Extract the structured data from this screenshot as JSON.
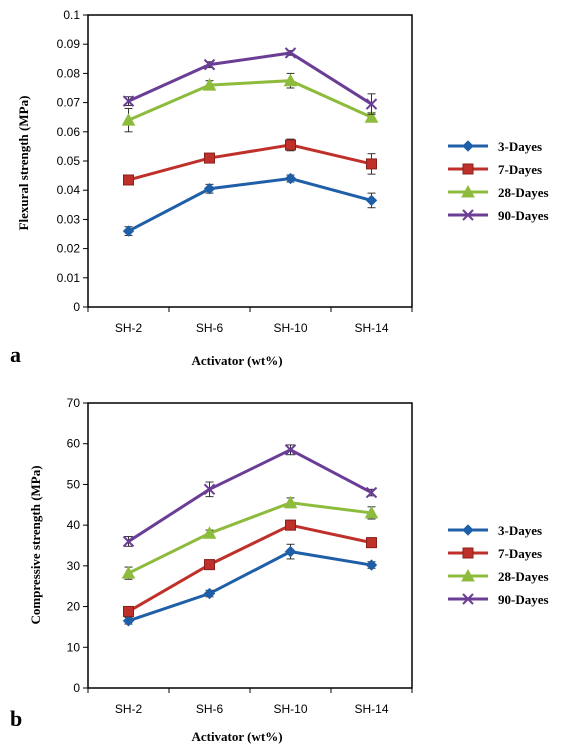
{
  "chart_data": [
    {
      "type": "line",
      "panel": "a",
      "categories": [
        "SH-2",
        "SH-6",
        "SH-10",
        "SH-14"
      ],
      "xlabel": "Activator (wt%)",
      "ylabel": "Flexural strength (MPa)",
      "ylim": [
        0,
        0.1
      ],
      "yticks": [
        "0",
        "0.01",
        "0.02",
        "0.03",
        "0.04",
        "0.05",
        "0.06",
        "0.07",
        "0.08",
        "0.09",
        "0.1"
      ],
      "grid": false,
      "legend": "right",
      "series": [
        {
          "name": "3-Dayes",
          "values": [
            0.026,
            0.0405,
            0.044,
            0.0365
          ],
          "errors": [
            0.0015,
            0.0015,
            0.0012,
            0.0025
          ],
          "color": "#1f5fa8",
          "marker": "diamond"
        },
        {
          "name": "7-Dayes",
          "values": [
            0.0435,
            0.051,
            0.0555,
            0.049
          ],
          "errors": [
            0.0015,
            0.0015,
            0.002,
            0.0035
          ],
          "color": "#c0302a",
          "marker": "square"
        },
        {
          "name": "28-Dayes",
          "values": [
            0.064,
            0.076,
            0.0775,
            0.065
          ],
          "errors": [
            0.004,
            0.0015,
            0.0025,
            0.0015
          ],
          "color": "#8dbb3c",
          "marker": "triangle"
        },
        {
          "name": "90-Dayes",
          "values": [
            0.0705,
            0.083,
            0.087,
            0.0695
          ],
          "errors": [
            0.0015,
            0.001,
            0.0008,
            0.0035
          ],
          "color": "#6a3d96",
          "marker": "x"
        }
      ]
    },
    {
      "type": "line",
      "panel": "b",
      "categories": [
        "SH-2",
        "SH-6",
        "SH-10",
        "SH-14"
      ],
      "xlabel": "Activator (wt%)",
      "ylabel": "Compressive strength (MPa)",
      "ylim": [
        0,
        70
      ],
      "yticks": [
        "0",
        "10",
        "20",
        "30",
        "40",
        "50",
        "60",
        "70"
      ],
      "grid": false,
      "legend": "right",
      "series": [
        {
          "name": "3-Dayes",
          "values": [
            16.5,
            23.2,
            33.5,
            30.2
          ],
          "errors": [
            0.8,
            0.8,
            1.8,
            0.8
          ],
          "color": "#1f5fa8",
          "marker": "diamond"
        },
        {
          "name": "7-Dayes",
          "values": [
            18.8,
            30.3,
            40.0,
            35.7
          ],
          "errors": [
            1.2,
            1.2,
            1.2,
            1.2
          ],
          "color": "#c0302a",
          "marker": "square"
        },
        {
          "name": "28-Dayes",
          "values": [
            28.2,
            38.0,
            45.5,
            43.0
          ],
          "errors": [
            1.5,
            0.8,
            1.2,
            1.5
          ],
          "color": "#8dbb3c",
          "marker": "triangle"
        },
        {
          "name": "90-Dayes",
          "values": [
            36.0,
            48.8,
            58.5,
            48.0
          ],
          "errors": [
            1.2,
            1.8,
            1.2,
            0.8
          ],
          "color": "#6a3d96",
          "marker": "x"
        }
      ]
    }
  ]
}
